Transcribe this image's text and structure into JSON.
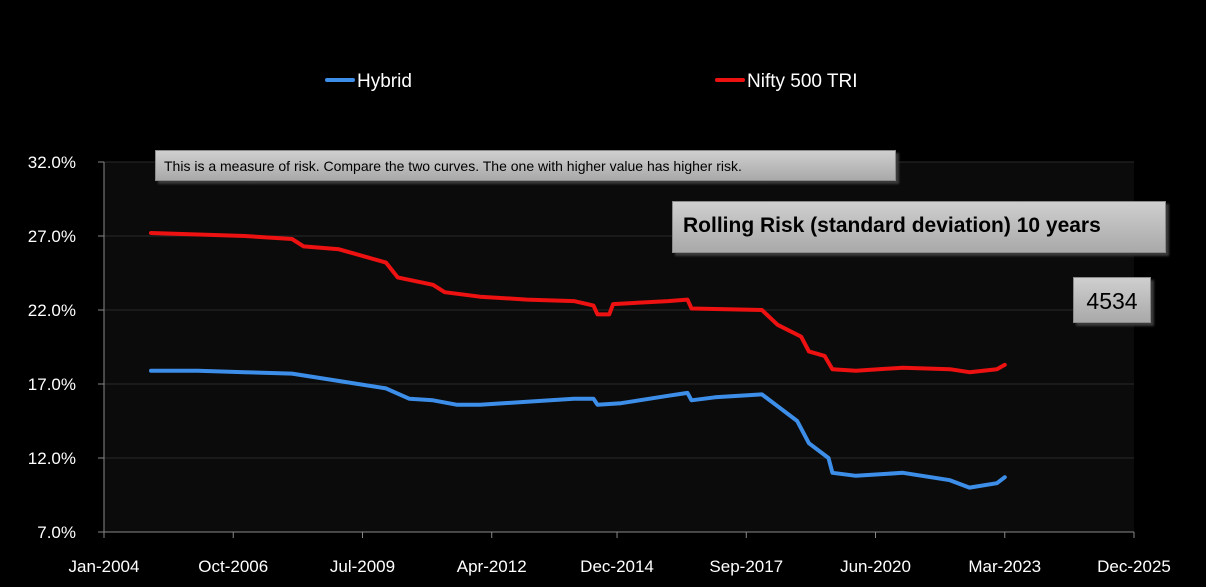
{
  "note": "This is a measure of risk.  Compare the two curves. The one with higher value has higher risk.",
  "chart_title": "Rolling Risk (standard deviation) 10 years",
  "count_label": "4534",
  "colors": {
    "background": "#000000",
    "plot_area": "#0b0b0b",
    "hybrid": "#3d8ee8",
    "nifty": "#ee1111"
  },
  "chart_data": {
    "type": "line",
    "xlabel": "",
    "ylabel": "",
    "x_tick_labels": [
      "Jan-2004",
      "Oct-2006",
      "Jul-2009",
      "Apr-2012",
      "Dec-2014",
      "Sep-2017",
      "Jun-2020",
      "Mar-2023",
      "Dec-2025"
    ],
    "x_range": [
      "Jan-2004",
      "Dec-2025"
    ],
    "y_tick_labels": [
      "7.0%",
      "12.0%",
      "17.0%",
      "22.0%",
      "27.0%",
      "32.0%"
    ],
    "ylim": [
      7.0,
      32.0
    ],
    "y_unit": "%",
    "grid": "horizontal",
    "legend_position": "top",
    "series": [
      {
        "name": "Hybrid",
        "points": [
          [
            "Jan-2005",
            17.9
          ],
          [
            "Jan-2006",
            17.9
          ],
          [
            "Jan-2007",
            17.8
          ],
          [
            "Jan-2008",
            17.7
          ],
          [
            "Jan-2009",
            17.2
          ],
          [
            "Jan-2010",
            16.7
          ],
          [
            "Jul-2010",
            16.0
          ],
          [
            "Jan-2011",
            15.9
          ],
          [
            "Jul-2011",
            15.6
          ],
          [
            "Jan-2012",
            15.6
          ],
          [
            "Jan-2013",
            15.8
          ],
          [
            "Jan-2014",
            16.0
          ],
          [
            "Jun-2014",
            16.0
          ],
          [
            "Jul-2014",
            15.6
          ],
          [
            "Jan-2015",
            15.7
          ],
          [
            "Jan-2016",
            16.2
          ],
          [
            "Jun-2016",
            16.4
          ],
          [
            "Jul-2016",
            15.9
          ],
          [
            "Jan-2017",
            16.1
          ],
          [
            "Jan-2018",
            16.3
          ],
          [
            "May-2018",
            15.5
          ],
          [
            "Oct-2018",
            14.5
          ],
          [
            "Jan-2019",
            13.0
          ],
          [
            "Jun-2019",
            12.0
          ],
          [
            "Jul-2019",
            11.0
          ],
          [
            "Jan-2020",
            10.8
          ],
          [
            "Jan-2021",
            11.0
          ],
          [
            "Jan-2022",
            10.5
          ],
          [
            "Jun-2022",
            10.0
          ],
          [
            "Jan-2023",
            10.3
          ],
          [
            "Mar-2023",
            10.7
          ]
        ]
      },
      {
        "name": "Nifty 500 TRI",
        "points": [
          [
            "Jan-2005",
            27.2
          ],
          [
            "Jan-2006",
            27.1
          ],
          [
            "Jan-2007",
            27.0
          ],
          [
            "Jan-2008",
            26.8
          ],
          [
            "Apr-2008",
            26.3
          ],
          [
            "Jan-2009",
            26.1
          ],
          [
            "Jan-2010",
            25.2
          ],
          [
            "Apr-2010",
            24.2
          ],
          [
            "Jan-2011",
            23.7
          ],
          [
            "Apr-2011",
            23.2
          ],
          [
            "Jan-2012",
            22.9
          ],
          [
            "Jan-2013",
            22.7
          ],
          [
            "Jan-2014",
            22.6
          ],
          [
            "Jun-2014",
            22.3
          ],
          [
            "Jul-2014",
            21.7
          ],
          [
            "Oct-2014",
            21.7
          ],
          [
            "Nov-2014",
            22.4
          ],
          [
            "Jan-2016",
            22.6
          ],
          [
            "Jun-2016",
            22.7
          ],
          [
            "Jul-2016",
            22.1
          ],
          [
            "Jan-2018",
            22.0
          ],
          [
            "May-2018",
            21.0
          ],
          [
            "Nov-2018",
            20.2
          ],
          [
            "Jan-2019",
            19.2
          ],
          [
            "May-2019",
            18.9
          ],
          [
            "Jul-2019",
            18.0
          ],
          [
            "Jan-2020",
            17.9
          ],
          [
            "Jan-2021",
            18.1
          ],
          [
            "Jan-2022",
            18.0
          ],
          [
            "Jun-2022",
            17.8
          ],
          [
            "Jan-2023",
            18.0
          ],
          [
            "Mar-2023",
            18.3
          ]
        ]
      }
    ]
  }
}
